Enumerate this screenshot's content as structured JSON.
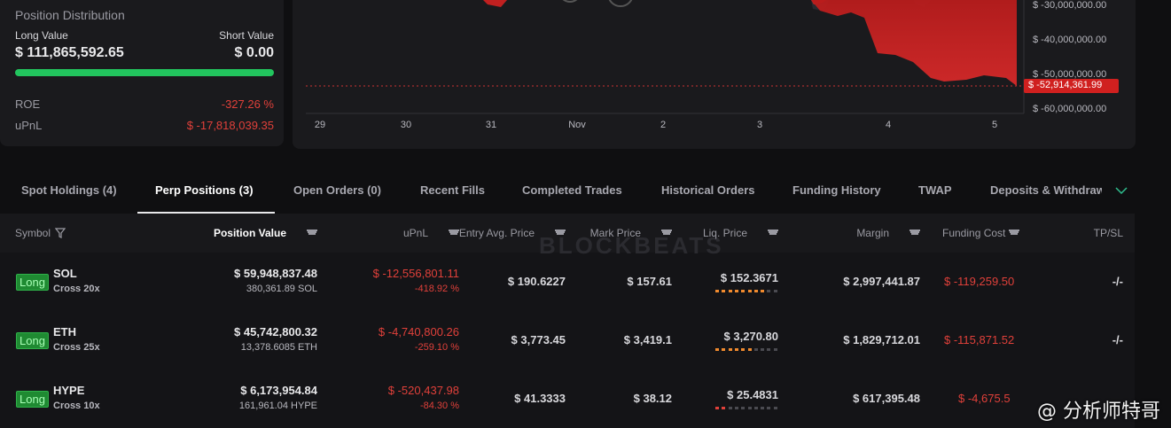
{
  "position": {
    "title": "Position Distribution",
    "long_label": "Long Value",
    "short_label": "Short Value",
    "long_value": "$ 111,865,592.65",
    "short_value": "$ 0.00",
    "roe_label": "ROE",
    "roe_value": "-327.26 %",
    "upnl_label": "uPnL",
    "upnl_value": "$ -17,818,039.35"
  },
  "chart": {
    "y_labels": [
      "$ -30,000,000.00",
      "$ -40,000,000.00",
      "$ -50,000,000.00",
      "$ -60,000,000.00"
    ],
    "current_label": "$ -52,914,361.99",
    "x_labels": [
      "29",
      "30",
      "31",
      "Nov",
      "2",
      "3",
      "4",
      "5"
    ]
  },
  "tabs": [
    "Spot Holdings (4)",
    "Perp Positions (3)",
    "Open Orders (0)",
    "Recent Fills",
    "Completed Trades",
    "Historical Orders",
    "Funding History",
    "TWAP",
    "Deposits & Withdraw"
  ],
  "table": {
    "headers": [
      "Symbol",
      "Position Value",
      "uPnL",
      "Entry Avg. Price",
      "Mark Price",
      "Liq. Price",
      "Margin",
      "Funding Cost",
      "TP/SL"
    ],
    "rows": [
      {
        "side": "Long",
        "symbol": "SOL",
        "leverage": "Cross 20x",
        "position_value": "$ 59,948,837.48",
        "size": "380,361.89 SOL",
        "upnl": "$ -12,556,801.11",
        "upnl_pct": "-418.92 %",
        "entry": "$ 190.6227",
        "mark": "$ 157.61",
        "liq": "$ 152.3671",
        "margin": "$ 2,997,441.87",
        "funding": "$ -119,259.50",
        "tpsl": "-/-"
      },
      {
        "side": "Long",
        "symbol": "ETH",
        "leverage": "Cross 25x",
        "position_value": "$ 45,742,800.32",
        "size": "13,378.6085 ETH",
        "upnl": "$ -4,740,800.26",
        "upnl_pct": "-259.10 %",
        "entry": "$ 3,773.45",
        "mark": "$ 3,419.1",
        "liq": "$ 3,270.80",
        "margin": "$ 1,829,712.01",
        "funding": "$ -115,871.52",
        "tpsl": "-/-"
      },
      {
        "side": "Long",
        "symbol": "HYPE",
        "leverage": "Cross 10x",
        "position_value": "$ 6,173,954.84",
        "size": "161,961.04 HYPE",
        "upnl": "$ -520,437.98",
        "upnl_pct": "-84.30 %",
        "entry": "$ 41.3333",
        "mark": "$ 38.12",
        "liq": "$ 25.4831",
        "margin": "$ 617,395.48",
        "funding": "$ -4,675.5"
      }
    ]
  },
  "watermarks": {
    "brand": "BLOCKBEATS",
    "author": "@ 分析师特哥"
  }
}
